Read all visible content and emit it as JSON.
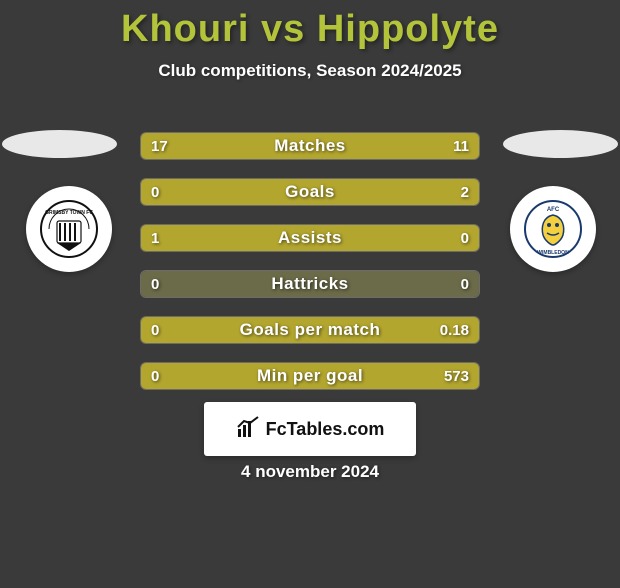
{
  "title": {
    "player1": "Khouri",
    "vs": "vs",
    "player2": "Hippolyte",
    "color": "#b3c43b"
  },
  "subtitle": "Club competitions, Season 2024/2025",
  "date": "4 november 2024",
  "brand": "FcTables.com",
  "colors": {
    "background": "#3a3a3a",
    "bar_fill": "#b3a62f",
    "bar_bg": "#6b6b49",
    "title": "#b3c43b",
    "text": "#ffffff"
  },
  "badges": {
    "left": {
      "name": "Grimsby Town FC"
    },
    "right": {
      "name": "AFC Wimbledon"
    }
  },
  "bars": [
    {
      "label": "Matches",
      "left": "17",
      "right": "11",
      "left_pct": 60.7,
      "right_pct": 39.3
    },
    {
      "label": "Goals",
      "left": "0",
      "right": "2",
      "left_pct": 0,
      "right_pct": 100
    },
    {
      "label": "Assists",
      "left": "1",
      "right": "0",
      "left_pct": 100,
      "right_pct": 0
    },
    {
      "label": "Hattricks",
      "left": "0",
      "right": "0",
      "left_pct": 0,
      "right_pct": 0
    },
    {
      "label": "Goals per match",
      "left": "0",
      "right": "0.18",
      "left_pct": 0,
      "right_pct": 100
    },
    {
      "label": "Min per goal",
      "left": "0",
      "right": "573",
      "left_pct": 0,
      "right_pct": 100
    }
  ]
}
